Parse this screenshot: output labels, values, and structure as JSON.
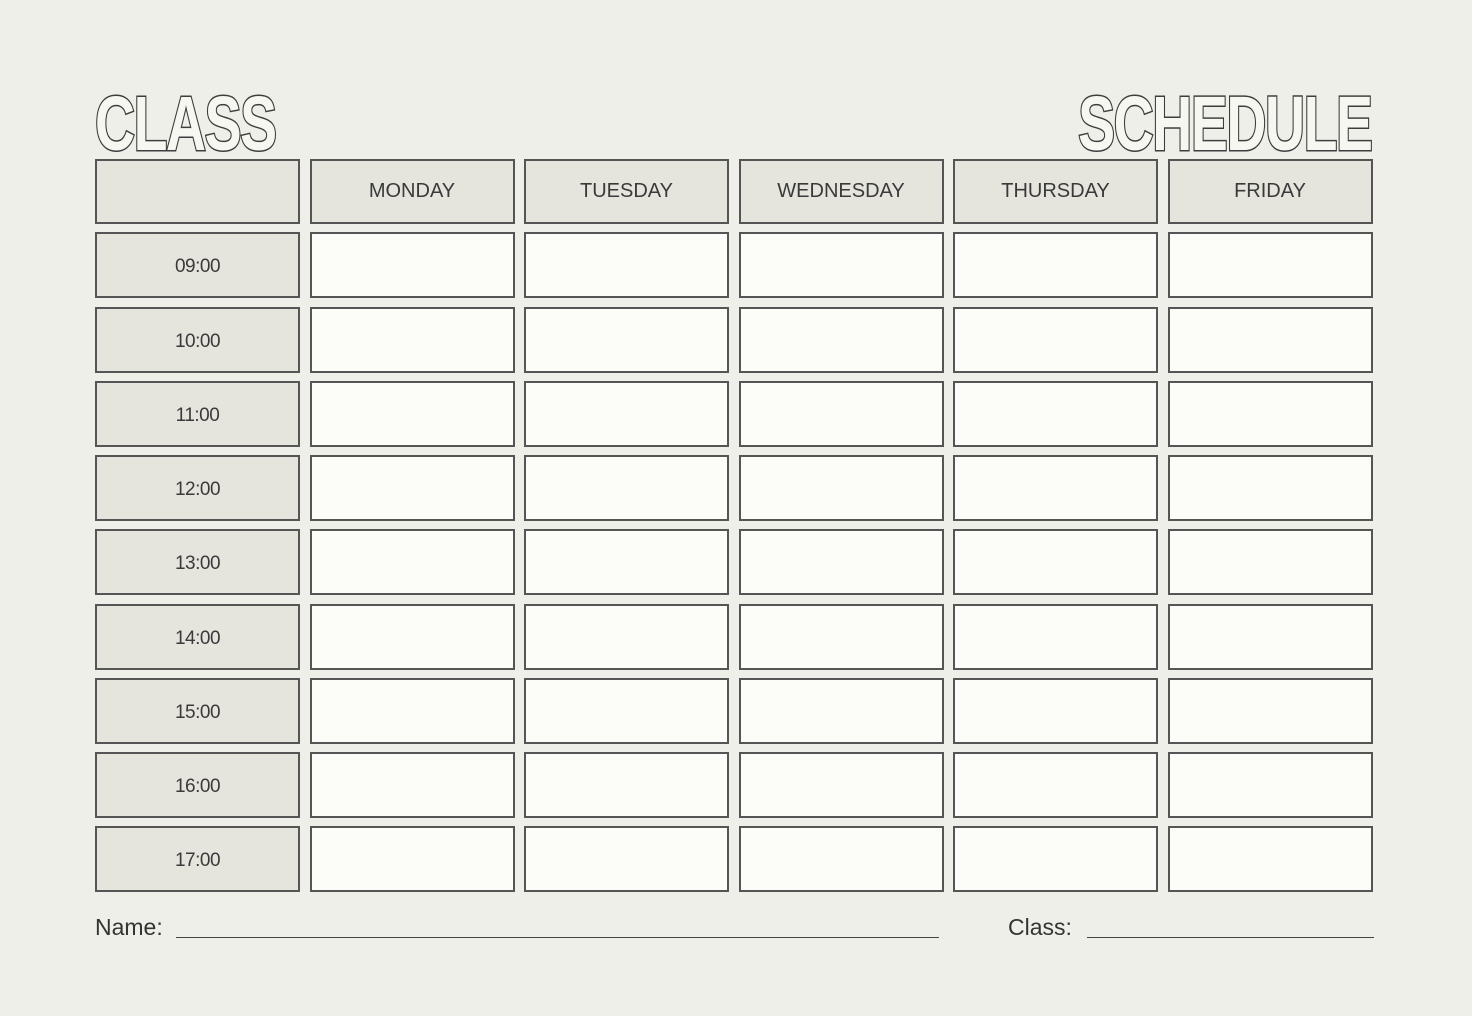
{
  "title": {
    "left": "CLASS",
    "right": "SCHEDULE"
  },
  "days": [
    "MONDAY",
    "TUESDAY",
    "WEDNESDAY",
    "THURSDAY",
    "FRIDAY"
  ],
  "times": [
    "09:00",
    "10:00",
    "11:00",
    "12:00",
    "13:00",
    "14:00",
    "15:00",
    "16:00",
    "17:00"
  ],
  "footer": {
    "name_label": "Name:",
    "class_label": "Class:"
  },
  "colors": {
    "background": "#efefea",
    "header_fill": "#e5e5dd",
    "cell_fill": "#fcfcf8",
    "border": "#555555"
  }
}
